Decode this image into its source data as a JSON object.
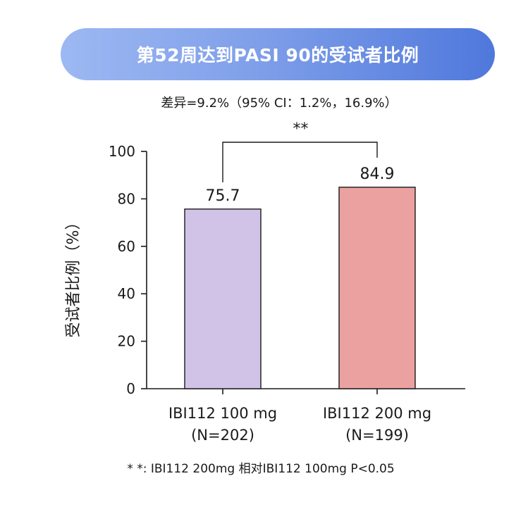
{
  "banner": {
    "title": "第52周达到PASI 90的受试者比例"
  },
  "difference_text": "差异=9.2%（95% CI：1.2%，16.9%）",
  "footnote": "* *: IBI112  200mg 相对IBI112 100mg P<0.05",
  "chart_data": {
    "type": "bar",
    "title": "第52周达到PASI 90的受试者比例",
    "xlabel": "",
    "ylabel": "受试者比例（%）",
    "ylim": [
      0,
      100
    ],
    "yticks": [
      0,
      20,
      40,
      60,
      80,
      100
    ],
    "grid": false,
    "categories": [
      {
        "name": "IBI112 100 mg",
        "sub": "(N=202)"
      },
      {
        "name": "IBI112 200 mg",
        "sub": "(N=199)"
      }
    ],
    "values": [
      75.7,
      84.9
    ],
    "value_labels": [
      "75.7",
      "84.9"
    ],
    "colors": [
      "#d1c3e8",
      "#eba1a0"
    ],
    "significance": {
      "label": "**",
      "between": [
        0,
        1
      ]
    }
  }
}
